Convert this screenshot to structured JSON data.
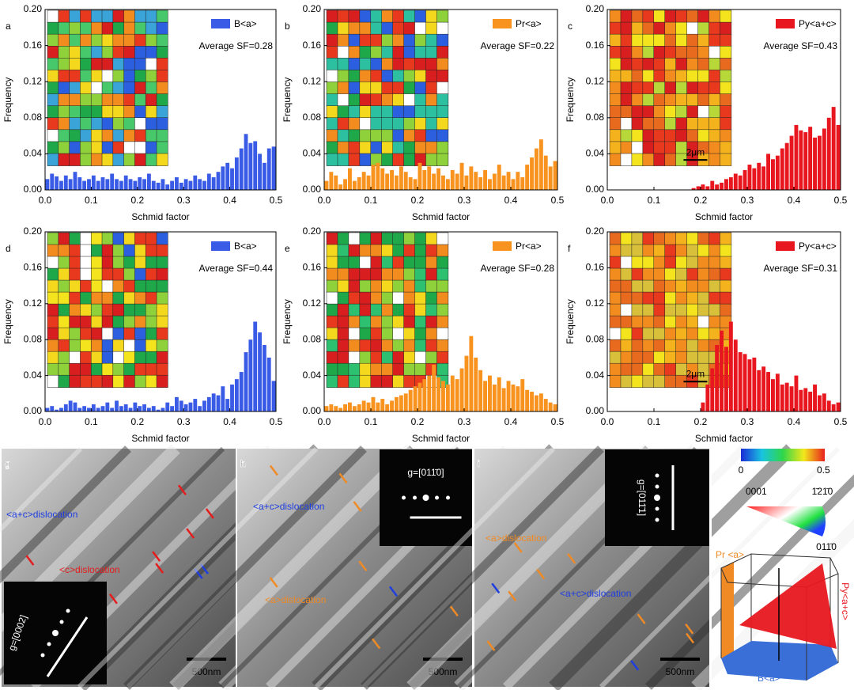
{
  "chart_data": [
    {
      "type": "histogram",
      "panel": "a",
      "annotation": "Average SF=0.28",
      "x_label": "Schmid factor",
      "y_label": "Frequency",
      "bins": [
        0,
        0.01,
        0.02,
        0.03,
        0.04,
        0.05,
        0.06,
        0.07,
        0.08,
        0.09,
        0.1,
        0.11,
        0.12,
        0.13,
        0.14,
        0.15,
        0.16,
        0.17,
        0.18,
        0.19,
        0.2,
        0.21,
        0.22,
        0.23,
        0.24,
        0.25,
        0.26,
        0.27,
        0.28,
        0.29,
        0.3,
        0.31,
        0.32,
        0.33,
        0.34,
        0.35,
        0.36,
        0.37,
        0.38,
        0.39,
        0.4,
        0.41,
        0.42,
        0.43,
        0.44,
        0.45,
        0.46,
        0.47,
        0.48,
        0.49,
        0.5
      ],
      "series": [
        {
          "name": "B<a>",
          "color": "#3a5be6",
          "values": [
            0.012,
            0.018,
            0.015,
            0.01,
            0.016,
            0.012,
            0.02,
            0.014,
            0.01,
            0.012,
            0.016,
            0.01,
            0.014,
            0.012,
            0.018,
            0.012,
            0.01,
            0.016,
            0.012,
            0.01,
            0.014,
            0.012,
            0.018,
            0.01,
            0.008,
            0.012,
            0.006,
            0.01,
            0.014,
            0.008,
            0.012,
            0.01,
            0.016,
            0.012,
            0.01,
            0.018,
            0.014,
            0.02,
            0.026,
            0.03,
            0.024,
            0.036,
            0.046,
            0.062,
            0.052,
            0.054,
            0.04,
            0.03,
            0.046,
            0.048
          ]
        }
      ],
      "xlim": [
        0,
        0.5
      ],
      "xticks": [
        {
          "value": 0,
          "label": "0.0"
        },
        0.1,
        0.2,
        0.3,
        0.4,
        0.5
      ],
      "ylim": [
        0,
        0.2
      ],
      "yticks": [
        {
          "value": 0,
          "label": "0.00"
        },
        0.04,
        0.08,
        0.12,
        0.16,
        {
          "value": 0.2,
          "label": "0.20"
        }
      ]
    },
    {
      "type": "histogram",
      "panel": "b",
      "annotation": "Average SF=0.22",
      "x_label": "Schmid factor",
      "y_label": "Frequency",
      "bins": [
        0,
        0.01,
        0.02,
        0.03,
        0.04,
        0.05,
        0.06,
        0.07,
        0.08,
        0.09,
        0.1,
        0.11,
        0.12,
        0.13,
        0.14,
        0.15,
        0.16,
        0.17,
        0.18,
        0.19,
        0.2,
        0.21,
        0.22,
        0.23,
        0.24,
        0.25,
        0.26,
        0.27,
        0.28,
        0.29,
        0.3,
        0.31,
        0.32,
        0.33,
        0.34,
        0.35,
        0.36,
        0.37,
        0.38,
        0.39,
        0.4,
        0.41,
        0.42,
        0.43,
        0.44,
        0.45,
        0.46,
        0.47,
        0.48,
        0.49,
        0.5
      ],
      "series": [
        {
          "name": "Pr<a>",
          "color": "#f7931e",
          "values": [
            0.01,
            0.02,
            0.016,
            0.006,
            0.012,
            0.024,
            0.01,
            0.014,
            0.02,
            0.016,
            0.028,
            0.03,
            0.024,
            0.018,
            0.022,
            0.016,
            0.026,
            0.02,
            0.014,
            0.012,
            0.03,
            0.022,
            0.026,
            0.018,
            0.024,
            0.016,
            0.012,
            0.022,
            0.018,
            0.03,
            0.016,
            0.026,
            0.02,
            0.014,
            0.022,
            0.012,
            0.018,
            0.028,
            0.016,
            0.02,
            0.012,
            0.02,
            0.014,
            0.028,
            0.036,
            0.046,
            0.056,
            0.038,
            0.026,
            0.032
          ]
        }
      ],
      "xlim": [
        0,
        0.5
      ],
      "xticks": [
        {
          "value": 0,
          "label": "0.0"
        },
        0.1,
        0.2,
        0.3,
        0.4,
        0.5
      ],
      "ylim": [
        0,
        0.2
      ],
      "yticks": [
        {
          "value": 0,
          "label": "0.00"
        },
        0.04,
        0.08,
        0.12,
        0.16,
        {
          "value": 0.2,
          "label": "0.20"
        }
      ]
    },
    {
      "type": "histogram",
      "panel": "c",
      "annotation": "Average SF=0.43",
      "x_label": "Schmid factor",
      "y_label": "Frequency",
      "inset_scale": "2μm",
      "bins": [
        0,
        0.01,
        0.02,
        0.03,
        0.04,
        0.05,
        0.06,
        0.07,
        0.08,
        0.09,
        0.1,
        0.11,
        0.12,
        0.13,
        0.14,
        0.15,
        0.16,
        0.17,
        0.18,
        0.19,
        0.2,
        0.21,
        0.22,
        0.23,
        0.24,
        0.25,
        0.26,
        0.27,
        0.28,
        0.29,
        0.3,
        0.31,
        0.32,
        0.33,
        0.34,
        0.35,
        0.36,
        0.37,
        0.38,
        0.39,
        0.4,
        0.41,
        0.42,
        0.43,
        0.44,
        0.45,
        0.46,
        0.47,
        0.48,
        0.49,
        0.5
      ],
      "series": [
        {
          "name": "Py<a+c>",
          "color": "#e8171f",
          "values": [
            0,
            0,
            0,
            0,
            0,
            0,
            0,
            0,
            0,
            0,
            0,
            0,
            0,
            0,
            0,
            0,
            0,
            0,
            0.002,
            0.004,
            0.006,
            0.004,
            0.01,
            0.006,
            0.008,
            0.012,
            0.014,
            0.018,
            0.016,
            0.022,
            0.028,
            0.024,
            0.03,
            0.026,
            0.04,
            0.034,
            0.038,
            0.046,
            0.052,
            0.06,
            0.072,
            0.066,
            0.064,
            0.07,
            0.058,
            0.06,
            0.068,
            0.08,
            0.092,
            0.072
          ]
        }
      ],
      "xlim": [
        0,
        0.5
      ],
      "xticks": [
        {
          "value": 0,
          "label": "0.0"
        },
        0.1,
        0.2,
        0.3,
        0.4,
        0.5
      ],
      "ylim": [
        0,
        0.2
      ],
      "yticks": [
        {
          "value": 0,
          "label": "0.00"
        },
        0.04,
        0.08,
        0.12,
        0.16,
        {
          "value": 0.2,
          "label": "0.20"
        }
      ]
    },
    {
      "type": "histogram",
      "panel": "d",
      "annotation": "Average SF=0.44",
      "x_label": "Schmid factor",
      "y_label": "Frequency",
      "bins": [
        0,
        0.01,
        0.02,
        0.03,
        0.04,
        0.05,
        0.06,
        0.07,
        0.08,
        0.09,
        0.1,
        0.11,
        0.12,
        0.13,
        0.14,
        0.15,
        0.16,
        0.17,
        0.18,
        0.19,
        0.2,
        0.21,
        0.22,
        0.23,
        0.24,
        0.25,
        0.26,
        0.27,
        0.28,
        0.29,
        0.3,
        0.31,
        0.32,
        0.33,
        0.34,
        0.35,
        0.36,
        0.37,
        0.38,
        0.39,
        0.4,
        0.41,
        0.42,
        0.43,
        0.44,
        0.45,
        0.46,
        0.47,
        0.48,
        0.49,
        0.5
      ],
      "series": [
        {
          "name": "B<a>",
          "color": "#3a5be6",
          "values": [
            0.004,
            0.006,
            0.002,
            0.004,
            0.008,
            0.012,
            0.01,
            0.004,
            0.006,
            0.004,
            0.008,
            0.004,
            0.006,
            0.01,
            0.004,
            0.012,
            0.006,
            0.008,
            0.004,
            0.01,
            0.006,
            0.008,
            0.004,
            0.006,
            0.002,
            0.004,
            0.01,
            0.006,
            0.016,
            0.012,
            0.008,
            0.01,
            0.014,
            0.006,
            0.012,
            0.016,
            0.02,
            0.018,
            0.028,
            0.014,
            0.03,
            0.036,
            0.044,
            0.066,
            0.08,
            0.1,
            0.088,
            0.074,
            0.06,
            0.034
          ]
        }
      ],
      "xlim": [
        0,
        0.5
      ],
      "xticks": [
        {
          "value": 0,
          "label": "0.0"
        },
        0.1,
        0.2,
        0.3,
        0.4,
        0.5
      ],
      "ylim": [
        0,
        0.2
      ],
      "yticks": [
        {
          "value": 0,
          "label": "0.00"
        },
        0.04,
        0.08,
        0.12,
        0.16,
        {
          "value": 0.2,
          "label": "0.20"
        }
      ]
    },
    {
      "type": "histogram",
      "panel": "e",
      "annotation": "Average SF=0.28",
      "x_label": "Schmid factor",
      "y_label": "Frequency",
      "bins": [
        0,
        0.01,
        0.02,
        0.03,
        0.04,
        0.05,
        0.06,
        0.07,
        0.08,
        0.09,
        0.1,
        0.11,
        0.12,
        0.13,
        0.14,
        0.15,
        0.16,
        0.17,
        0.18,
        0.19,
        0.2,
        0.21,
        0.22,
        0.23,
        0.24,
        0.25,
        0.26,
        0.27,
        0.28,
        0.29,
        0.3,
        0.31,
        0.32,
        0.33,
        0.34,
        0.35,
        0.36,
        0.37,
        0.38,
        0.39,
        0.4,
        0.41,
        0.42,
        0.43,
        0.44,
        0.45,
        0.46,
        0.47,
        0.48,
        0.49,
        0.5
      ],
      "series": [
        {
          "name": "Pr<a>",
          "color": "#f7931e",
          "values": [
            0.006,
            0.008,
            0.006,
            0.004,
            0.008,
            0.01,
            0.006,
            0.008,
            0.012,
            0.01,
            0.016,
            0.01,
            0.014,
            0.008,
            0.012,
            0.016,
            0.018,
            0.02,
            0.024,
            0.028,
            0.032,
            0.036,
            0.04,
            0.052,
            0.038,
            0.034,
            0.03,
            0.04,
            0.036,
            0.048,
            0.062,
            0.084,
            0.06,
            0.046,
            0.034,
            0.04,
            0.03,
            0.038,
            0.026,
            0.034,
            0.03,
            0.028,
            0.036,
            0.024,
            0.022,
            0.018,
            0.02,
            0.014,
            0.01,
            0.008
          ]
        }
      ],
      "xlim": [
        0,
        0.5
      ],
      "xticks": [
        {
          "value": 0,
          "label": "0.0"
        },
        0.1,
        0.2,
        0.3,
        0.4,
        0.5
      ],
      "ylim": [
        0,
        0.2
      ],
      "yticks": [
        {
          "value": 0,
          "label": "0.00"
        },
        0.04,
        0.08,
        0.12,
        0.16,
        {
          "value": 0.2,
          "label": "0.20"
        }
      ]
    },
    {
      "type": "histogram",
      "panel": "f",
      "annotation": "Average SF=0.31",
      "x_label": "Schmid factor",
      "y_label": "Frequency",
      "inset_scale": "2μm",
      "bins": [
        0,
        0.01,
        0.02,
        0.03,
        0.04,
        0.05,
        0.06,
        0.07,
        0.08,
        0.09,
        0.1,
        0.11,
        0.12,
        0.13,
        0.14,
        0.15,
        0.16,
        0.17,
        0.18,
        0.19,
        0.2,
        0.21,
        0.22,
        0.23,
        0.24,
        0.25,
        0.26,
        0.27,
        0.28,
        0.29,
        0.3,
        0.31,
        0.32,
        0.33,
        0.34,
        0.35,
        0.36,
        0.37,
        0.38,
        0.39,
        0.4,
        0.41,
        0.42,
        0.43,
        0.44,
        0.45,
        0.46,
        0.47,
        0.48,
        0.49,
        0.5
      ],
      "series": [
        {
          "name": "Py<a+c>",
          "color": "#e8171f",
          "values": [
            0,
            0,
            0,
            0,
            0,
            0,
            0,
            0,
            0,
            0,
            0,
            0,
            0,
            0,
            0,
            0,
            0,
            0,
            0,
            0,
            0.01,
            0.03,
            0.048,
            0.074,
            0.09,
            0.072,
            0.1,
            0.08,
            0.066,
            0.064,
            0.058,
            0.06,
            0.046,
            0.05,
            0.044,
            0.036,
            0.042,
            0.03,
            0.032,
            0.028,
            0.04,
            0.024,
            0.026,
            0.022,
            0.03,
            0.018,
            0.02,
            0.012,
            0.008,
            0.01
          ]
        }
      ],
      "xlim": [
        0,
        0.5
      ],
      "xticks": [
        {
          "value": 0,
          "label": "0.0"
        },
        0.1,
        0.2,
        0.3,
        0.4,
        0.5
      ],
      "ylim": [
        0,
        0.2
      ],
      "yticks": [
        {
          "value": 0,
          "label": "0.00"
        },
        0.04,
        0.08,
        0.12,
        0.16,
        {
          "value": 0.2,
          "label": "0.20"
        }
      ]
    }
  ],
  "tem": [
    {
      "panel": "g",
      "diffraction": "g=[0002]",
      "scale": "500nm",
      "labels": [
        {
          "text": "<a+c>dislocation",
          "color": "#1f3ee0"
        },
        {
          "text": "<c>dislocation",
          "color": "#e51c1c"
        }
      ]
    },
    {
      "panel": "h",
      "diffraction": "g=[011̄0]",
      "scale": "500nm",
      "labels": [
        {
          "text": "<a+c>dislocation",
          "color": "#1f3ee0"
        },
        {
          "text": "<a>dislocation",
          "color": "#f08a24"
        }
      ]
    },
    {
      "panel": "i",
      "diffraction": "g=[011̄1]",
      "scale": "500nm",
      "labels": [
        {
          "text": "<a>dislocation",
          "color": "#f08a24"
        },
        {
          "text": "<a+c>dislocation",
          "color": "#1f3ee0"
        }
      ]
    }
  ],
  "key": {
    "colorbar_ticks": [
      0,
      0.5
    ],
    "corners": [
      "0001",
      "1̄21̄0",
      "011̄0"
    ],
    "planes": [
      {
        "text": "Pr <a>",
        "color": "#f08a24"
      },
      {
        "text": "Py<a+c>",
        "color": "#e8171f"
      },
      {
        "text": "B<a>",
        "color": "#3a6fd8"
      }
    ]
  }
}
